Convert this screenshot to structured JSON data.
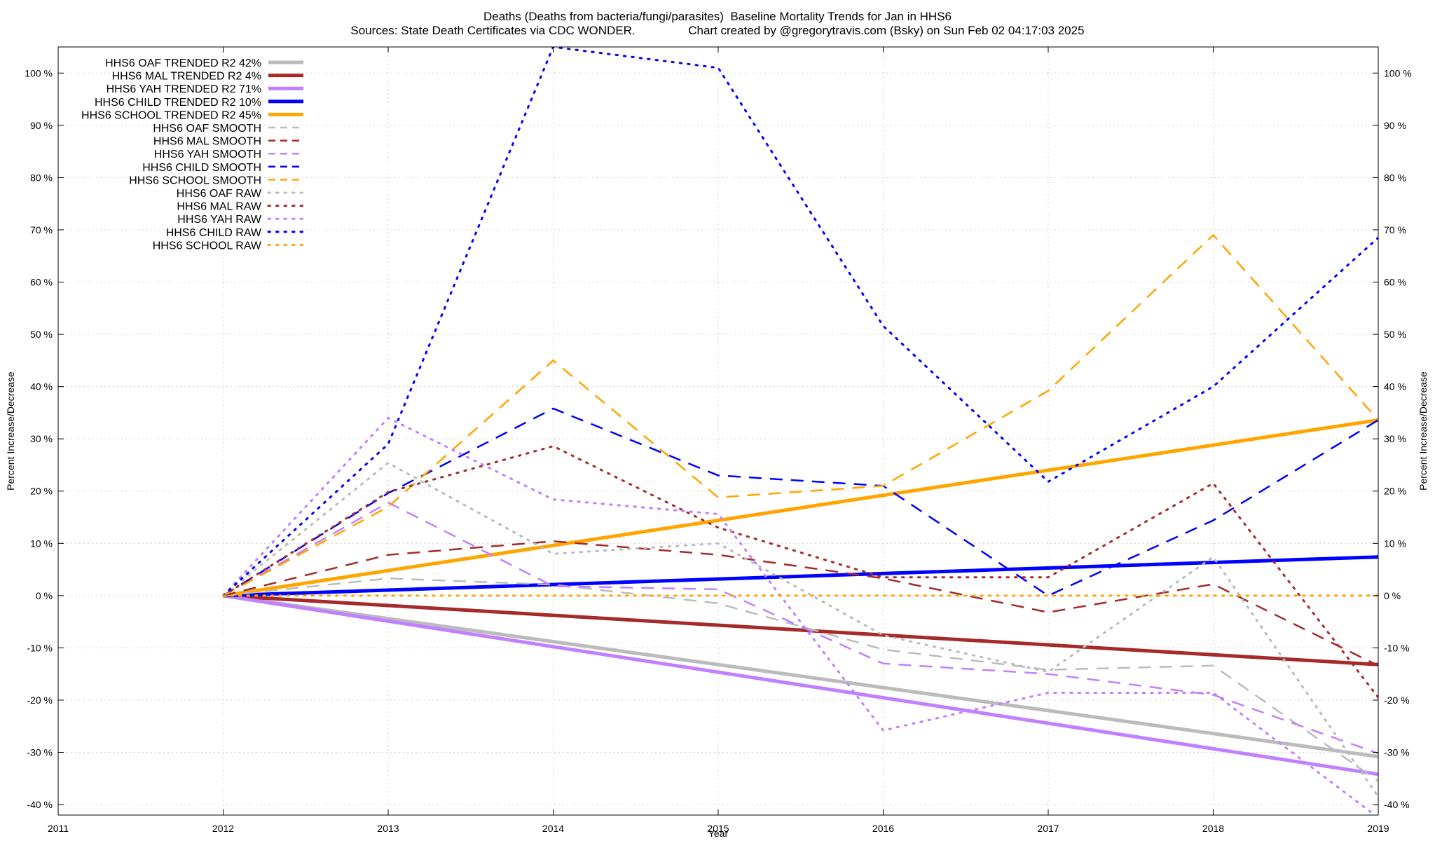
{
  "chart_data": {
    "type": "line",
    "title": "Deaths (Deaths from bacteria/fungi/parasites)  Baseline Mortality Trends for Jan in HHS6",
    "subtitle": "Sources: State Death Certificates via CDC WONDER.                Chart created by @gregorytravis.com (Bsky) on Sun Feb 02 04:17:03 2025",
    "xlabel": "Year",
    "ylabel": "Percent Increase/Decrease",
    "y2label": "Percent Increase/Decrease",
    "xlim": [
      2011,
      2019
    ],
    "ylim": [
      -42,
      105
    ],
    "x_ticks": [
      2011,
      2012,
      2013,
      2014,
      2015,
      2016,
      2017,
      2018,
      2019
    ],
    "y_ticks": [
      -40,
      -30,
      -20,
      -10,
      0,
      10,
      20,
      30,
      40,
      50,
      60,
      70,
      80,
      90,
      100
    ],
    "y_tick_suffix": " %",
    "grid": true,
    "legend_position": "top-left",
    "series": [
      {
        "name": "HHS6 OAF TRENDED R2  42%",
        "style": "solid",
        "color": "#bbbbbb",
        "x": [
          2012,
          2019
        ],
        "y": [
          0,
          -30.8
        ]
      },
      {
        "name": "HHS6 MAL TRENDED R2   4%",
        "style": "solid",
        "color": "#a52a2a",
        "x": [
          2012,
          2019
        ],
        "y": [
          0,
          -13.2
        ]
      },
      {
        "name": "HHS6 YAH TRENDED R2  71%",
        "style": "solid",
        "color": "#c080ff",
        "x": [
          2012,
          2019
        ],
        "y": [
          0,
          -34.2
        ]
      },
      {
        "name": "HHS6 CHILD TRENDED R2  10%",
        "style": "solid",
        "color": "#0000ff",
        "x": [
          2012,
          2019
        ],
        "y": [
          0,
          7.4
        ]
      },
      {
        "name": "HHS6 SCHOOL TRENDED R2  45%",
        "style": "solid",
        "color": "#ffa500",
        "x": [
          2012,
          2019
        ],
        "y": [
          0,
          33.6
        ]
      },
      {
        "name": "HHS6 OAF SMOOTH",
        "style": "dashed",
        "color": "#bbbbbb",
        "x": [
          2012,
          2013,
          2014,
          2015,
          2016,
          2017,
          2018,
          2019
        ],
        "y": [
          0,
          3.3,
          2.1,
          -1.5,
          -10.3,
          -14.2,
          -13.4,
          -35.5
        ]
      },
      {
        "name": "HHS6 MAL SMOOTH",
        "style": "dashed",
        "color": "#a52a2a",
        "x": [
          2012,
          2013,
          2014,
          2015,
          2016,
          2017,
          2018,
          2019
        ],
        "y": [
          0,
          7.8,
          10.4,
          7.8,
          3.3,
          -3.2,
          2.2,
          -13.4
        ]
      },
      {
        "name": "HHS6 YAH SMOOTH",
        "style": "dashed",
        "color": "#c080ff",
        "x": [
          2012,
          2013,
          2014,
          2015,
          2016,
          2017,
          2018,
          2019
        ],
        "y": [
          0,
          17.8,
          1.8,
          1.2,
          -13.0,
          -15.0,
          -19.0,
          -30.2
        ]
      },
      {
        "name": "HHS6 CHILD SMOOTH",
        "style": "dashed",
        "color": "#0000ff",
        "x": [
          2012,
          2013,
          2014,
          2015,
          2016,
          2017,
          2018,
          2019
        ],
        "y": [
          0,
          19.6,
          35.8,
          23.0,
          21.0,
          0.0,
          14.4,
          33.6
        ]
      },
      {
        "name": "HHS6 SCHOOL SMOOTH",
        "style": "dashed",
        "color": "#ffa500",
        "x": [
          2012,
          2013,
          2014,
          2015,
          2016,
          2017,
          2018,
          2019
        ],
        "y": [
          0,
          17.0,
          45.0,
          18.8,
          21.0,
          39.2,
          69.0,
          33.6
        ]
      },
      {
        "name": "HHS6 OAF RAW",
        "style": "dotted",
        "color": "#bbbbbb",
        "x": [
          2012,
          2013,
          2014,
          2015,
          2016,
          2017,
          2018,
          2019
        ],
        "y": [
          0,
          25.4,
          8.0,
          10.0,
          -7.6,
          -14.6,
          7.4,
          -38.5
        ]
      },
      {
        "name": "HHS6 MAL RAW",
        "style": "dotted",
        "color": "#a52a2a",
        "x": [
          2012,
          2013,
          2014,
          2015,
          2016,
          2017,
          2018,
          2019
        ],
        "y": [
          0,
          19.8,
          28.6,
          13.0,
          3.5,
          3.5,
          21.5,
          -19.5
        ]
      },
      {
        "name": "HHS6 YAH RAW",
        "style": "dotted",
        "color": "#c080ff",
        "x": [
          2012,
          2013,
          2014,
          2015,
          2016,
          2017,
          2018,
          2019
        ],
        "y": [
          0,
          34.0,
          18.4,
          15.6,
          -25.8,
          -18.6,
          -18.6,
          -42.5
        ]
      },
      {
        "name": "HHS6 CHILD RAW",
        "style": "dotted",
        "color": "#0000ff",
        "x": [
          2012,
          2013,
          2014,
          2015,
          2016,
          2017,
          2018,
          2019
        ],
        "y": [
          0,
          29.0,
          105.0,
          101.0,
          51.6,
          21.8,
          40.0,
          68.5
        ]
      },
      {
        "name": "HHS6 SCHOOL RAW",
        "style": "dotted",
        "color": "#ffa500",
        "x": [
          2012,
          2013,
          2014,
          2015,
          2016,
          2017,
          2018,
          2019
        ],
        "y": [
          0,
          0,
          0,
          0,
          0,
          0,
          0,
          0
        ]
      }
    ]
  }
}
